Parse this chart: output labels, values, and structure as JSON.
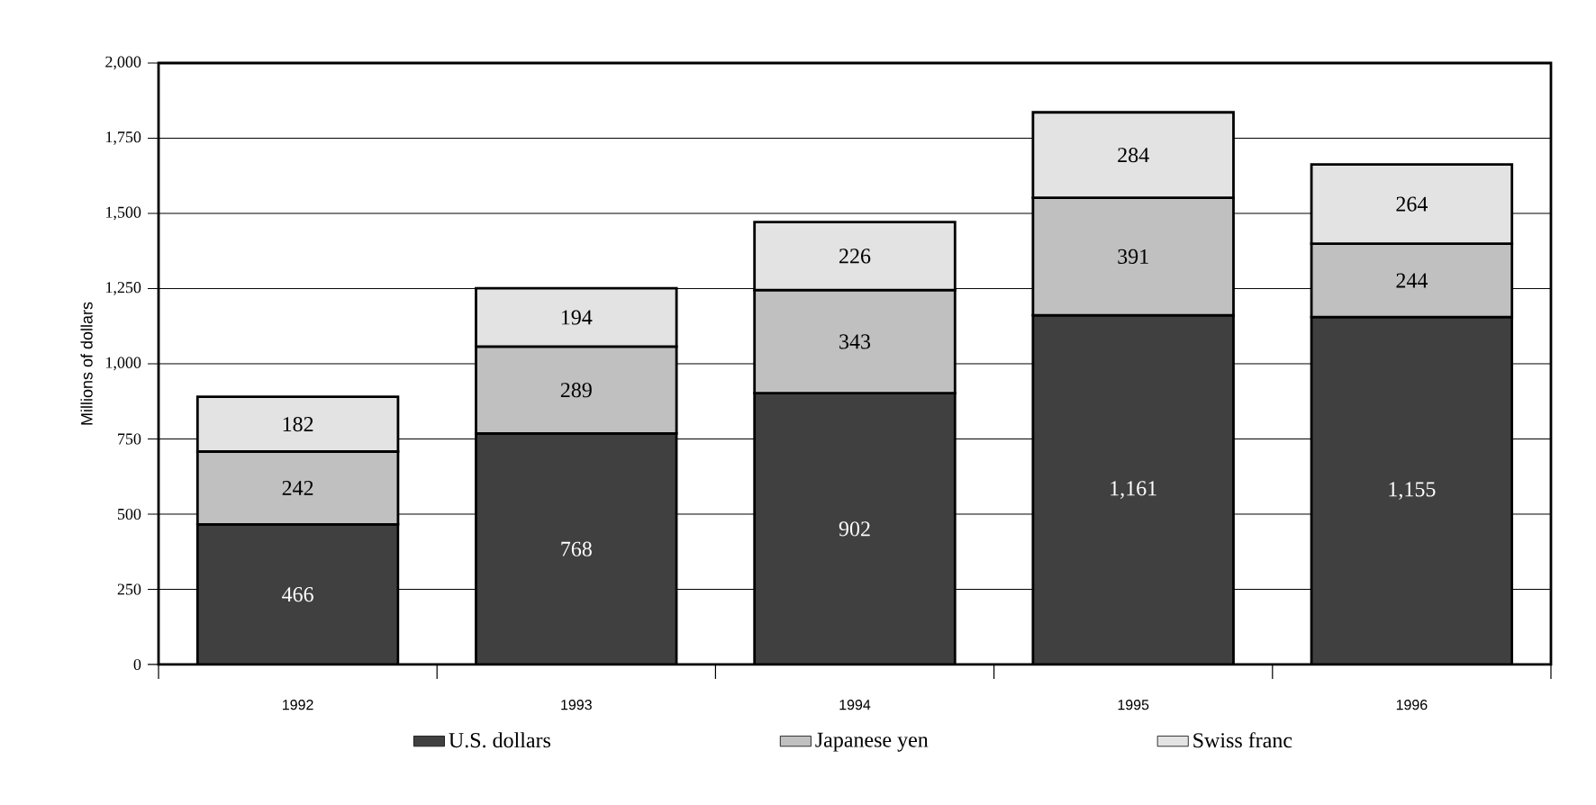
{
  "chart_data": {
    "type": "bar",
    "stacked": true,
    "ylabel": "Millions of dollars",
    "categories": [
      "1992",
      "1993",
      "1994",
      "1995",
      "1996"
    ],
    "series": [
      {
        "name": "U.S. dollars",
        "color": "#404040",
        "values": [
          466,
          768,
          902,
          1161,
          1155
        ],
        "value_labels": [
          "466",
          "768",
          "902",
          "1,161",
          "1,155"
        ]
      },
      {
        "name": "Japanese yen",
        "color": "#c0c0c0",
        "values": [
          242,
          289,
          343,
          391,
          244
        ],
        "value_labels": [
          "242",
          "289",
          "343",
          "391",
          "244"
        ]
      },
      {
        "name": "Swiss franc",
        "color": "#e3e3e3",
        "values": [
          182,
          194,
          226,
          284,
          264
        ],
        "value_labels": [
          "182",
          "194",
          "226",
          "284",
          "264"
        ]
      }
    ],
    "ylim": [
      0,
      2000
    ],
    "yticks": [
      0,
      250,
      500,
      750,
      {
        "value": 1000,
        "label": "1,000"
      },
      {
        "value": 1250,
        "label": "1,250"
      },
      {
        "value": 1500,
        "label": "1,500"
      },
      {
        "value": 1750,
        "label": "1,750"
      },
      {
        "value": 2000,
        "label": "2,000"
      }
    ],
    "grid": "y",
    "legend": "bottom"
  }
}
